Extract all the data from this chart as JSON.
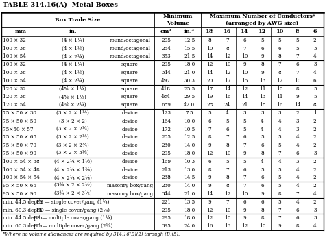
{
  "title": "TABLE 314.16(A)  Metal Boxes",
  "footnote": "*Where no volume allowances are required by 314.16(B)(2) through (B)(5).",
  "rows": [
    [
      "100 × 32",
      "(4 × 1¼)",
      "round/octagonal",
      "205",
      "12.5",
      "8",
      "7",
      "6",
      "5",
      "5",
      "5",
      "2"
    ],
    [
      "100 × 38",
      "(4 × 1½)",
      "round/octagonal",
      "254",
      "15.5",
      "10",
      "8",
      "7",
      "6",
      "6",
      "5",
      "3"
    ],
    [
      "100 × 54",
      "(4 × 2¼)",
      "round/octagonal",
      "353",
      "21.5",
      "14",
      "12",
      "10",
      "9",
      "8",
      "7",
      "4"
    ],
    [
      "100 × 32",
      "(4 × 1¼)",
      "square",
      "295",
      "18.0",
      "12",
      "10",
      "9",
      "8",
      "7",
      "6",
      "3"
    ],
    [
      "100 × 38",
      "(4 × 1½)",
      "square",
      "344",
      "21.0",
      "14",
      "12",
      "10",
      "9",
      "8",
      "7",
      "4"
    ],
    [
      "100 × 54",
      "(4 × 2¼)",
      "square",
      "497",
      "30.3",
      "20",
      "17",
      "15",
      "13",
      "12",
      "10",
      "6"
    ],
    [
      "120 × 32",
      "(4⅚ × 1¼)",
      "square",
      "418",
      "25.5",
      "17",
      "14",
      "12",
      "11",
      "10",
      "8",
      "5"
    ],
    [
      "120 × 38",
      "(4⅚ × 1½)",
      "square",
      "484",
      "29.5",
      "19",
      "16",
      "14",
      "13",
      "11",
      "9",
      "5"
    ],
    [
      "120 × 54",
      "(4⅚ × 2¼)",
      "square",
      "689",
      "42.0",
      "28",
      "24",
      "21",
      "18",
      "16",
      "14",
      "8"
    ],
    [
      "75 × 50 × 38",
      "(3 × 2 × 1½)",
      "device",
      "123",
      "7.5",
      "5",
      "4",
      "3",
      "3",
      "3",
      "2",
      "1"
    ],
    [
      "75 × 50 × 50",
      "(3 × 2 × 2)",
      "device",
      "164",
      "10.0",
      "6",
      "5",
      "5",
      "4",
      "4",
      "3",
      "2"
    ],
    [
      "75×50 × 57",
      "(3 × 2 × 2¼)",
      "device",
      "172",
      "10.5",
      "7",
      "6",
      "5",
      "4",
      "4",
      "3",
      "2"
    ],
    [
      "75 × 50 × 65",
      "(3 × 2 × 2½)",
      "device",
      "205",
      "12.5",
      "8",
      "7",
      "6",
      "5",
      "5",
      "4",
      "2"
    ],
    [
      "75 × 50 × 70",
      "(3 × 2 × 2¾)",
      "device",
      "230",
      "14.0",
      "9",
      "8",
      "7",
      "6",
      "5",
      "4",
      "2"
    ],
    [
      "75 × 50 × 90",
      "(3 × 2 × 3½)",
      "device",
      "295",
      "18.0",
      "12",
      "10",
      "9",
      "8",
      "7",
      "6",
      "3"
    ],
    [
      "100 × 54 × 38",
      "(4 × 2¼ × 1½)",
      "device",
      "169",
      "10.3",
      "6",
      "5",
      "5",
      "4",
      "4",
      "3",
      "2"
    ],
    [
      "100 × 54 × 48",
      "(4 × 2¼ × 1¾)",
      "device",
      "213",
      "13.0",
      "8",
      "7",
      "6",
      "5",
      "5",
      "4",
      "2"
    ],
    [
      "100 × 54 × 54",
      "(4 × 2¼ × 2¼)",
      "device",
      "238",
      "14.5",
      "9",
      "8",
      "7",
      "6",
      "5",
      "4",
      "2"
    ],
    [
      "95 × 50 × 65",
      "(3¾ × 2 × 2½)",
      "masonry box/gang",
      "230",
      "14.0",
      "9",
      "8",
      "7",
      "6",
      "5",
      "4",
      "2"
    ],
    [
      "95 × 50 × 90",
      "(3¾ × 2 × 3½)",
      "masonry box/gang",
      "344",
      "21.0",
      "14",
      "12",
      "10",
      "9",
      "8",
      "7",
      "4"
    ],
    [
      "min. 44.5 depth",
      "FS — single cover/gang (1¼)",
      "",
      "221",
      "13.5",
      "9",
      "7",
      "6",
      "6",
      "5",
      "4",
      "2"
    ],
    [
      "min. 60.3 depth",
      "FD — single cover/gang (2¼)",
      "",
      "295",
      "18.0",
      "12",
      "10",
      "9",
      "8",
      "7",
      "6",
      "3"
    ],
    [
      "min. 44.5 depth",
      "FS — multiple cover/gang (1¼)",
      "",
      "295",
      "18.0",
      "12",
      "10",
      "9",
      "8",
      "7",
      "6",
      "3"
    ],
    [
      "min. 60.3 depth",
      "FD — multiple cover/gang (2¼)",
      "",
      "395",
      "24.0",
      "16",
      "13",
      "12",
      "10",
      "9",
      "8",
      "4"
    ]
  ],
  "group_separators": [
    3,
    6,
    9,
    15,
    18,
    20,
    22
  ],
  "bg_color": "#ffffff",
  "text_color": "#000000",
  "font_size": 5.2,
  "header_font_size": 5.8,
  "title_font_size": 7.0
}
